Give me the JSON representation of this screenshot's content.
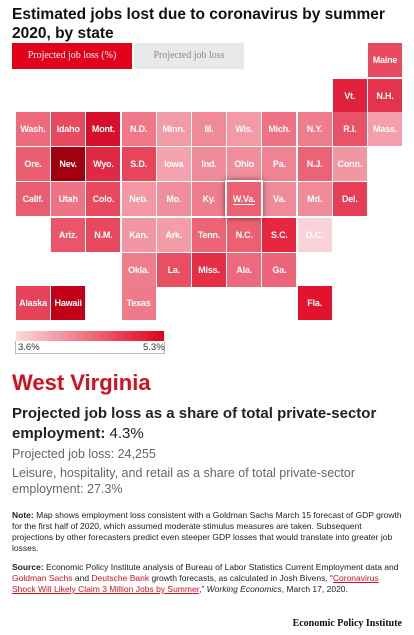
{
  "title": "Estimated jobs lost due to coronavirus by summer 2020, by state",
  "tabs": [
    "Projected job loss (%)",
    "Projected job loss"
  ],
  "colors": {
    "accent": "#e2001a",
    "light": "#fadade"
  },
  "states": [
    {
      "label": "Maine",
      "color": "#ea4a60",
      "row": 0,
      "col": 10
    },
    {
      "label": "Vt.",
      "color": "#e2213c",
      "row": 1,
      "col": 9
    },
    {
      "label": "N.H.",
      "color": "#e4344d",
      "row": 1,
      "col": 10
    },
    {
      "label": "Wash.",
      "color": "#ee6b7d",
      "row": 2,
      "col": 0
    },
    {
      "label": "Idaho",
      "color": "#e94a60",
      "row": 2,
      "col": 1
    },
    {
      "label": "Mont.",
      "color": "#d6102a",
      "row": 2,
      "col": 2
    },
    {
      "label": "N.D.",
      "color": "#f07788",
      "row": 2,
      "col": 3
    },
    {
      "label": "Minn.",
      "color": "#f29aa6",
      "row": 2,
      "col": 4
    },
    {
      "label": "Ill.",
      "color": "#f18a98",
      "row": 2,
      "col": 5
    },
    {
      "label": "Wis.",
      "color": "#f29aa6",
      "row": 2,
      "col": 6
    },
    {
      "label": "Mich.",
      "color": "#ee7283",
      "row": 2,
      "col": 7
    },
    {
      "label": "N.Y.",
      "color": "#ef7c8c",
      "row": 2,
      "col": 8
    },
    {
      "label": "R.I.",
      "color": "#ea5367",
      "row": 2,
      "col": 9
    },
    {
      "label": "Mass.",
      "color": "#f39eaa",
      "row": 2,
      "col": 10
    },
    {
      "label": "Ore.",
      "color": "#ec5e71",
      "row": 3,
      "col": 0
    },
    {
      "label": "Nev.",
      "color": "#a3000f",
      "row": 3,
      "col": 1
    },
    {
      "label": "Wyo.",
      "color": "#e02a44",
      "row": 3,
      "col": 2
    },
    {
      "label": "S.D.",
      "color": "#e8455b",
      "row": 3,
      "col": 3
    },
    {
      "label": "Iowa",
      "color": "#f4a3ae",
      "row": 3,
      "col": 4
    },
    {
      "label": "Ind.",
      "color": "#f08b99",
      "row": 3,
      "col": 5
    },
    {
      "label": "Ohio",
      "color": "#f18e9b",
      "row": 3,
      "col": 6
    },
    {
      "label": "Pa.",
      "color": "#ef8391",
      "row": 3,
      "col": 7
    },
    {
      "label": "N.J.",
      "color": "#ec6376",
      "row": 3,
      "col": 8
    },
    {
      "label": "Conn.",
      "color": "#f296a2",
      "row": 3,
      "col": 9
    },
    {
      "label": "Calif.",
      "color": "#ea5d70",
      "row": 4,
      "col": 0
    },
    {
      "label": "Utah",
      "color": "#ee7385",
      "row": 4,
      "col": 1
    },
    {
      "label": "Colo.",
      "color": "#e9485e",
      "row": 4,
      "col": 2
    },
    {
      "label": "Neb.",
      "color": "#f297a3",
      "row": 4,
      "col": 3
    },
    {
      "label": "Mo.",
      "color": "#f08e9b",
      "row": 4,
      "col": 4
    },
    {
      "label": "Ky.",
      "color": "#ee7e8d",
      "row": 4,
      "col": 5
    },
    {
      "label": "W.Va.",
      "color": "#ec6072",
      "row": 4,
      "col": 6,
      "selected": true
    },
    {
      "label": "Va.",
      "color": "#f08c9a",
      "row": 4,
      "col": 7
    },
    {
      "label": "Md.",
      "color": "#ef8a98",
      "row": 4,
      "col": 8
    },
    {
      "label": "Del.",
      "color": "#e63e55",
      "row": 4,
      "col": 9
    },
    {
      "label": "Ariz.",
      "color": "#ea5569",
      "row": 5,
      "col": 1
    },
    {
      "label": "N.M.",
      "color": "#e9495f",
      "row": 5,
      "col": 2
    },
    {
      "label": "Kan.",
      "color": "#f196a2",
      "row": 5,
      "col": 3
    },
    {
      "label": "Ark.",
      "color": "#f39da8",
      "row": 5,
      "col": 4
    },
    {
      "label": "Tenn.",
      "color": "#ec6476",
      "row": 5,
      "col": 5
    },
    {
      "label": "N.C.",
      "color": "#ec6072",
      "row": 5,
      "col": 6
    },
    {
      "label": "S.C.",
      "color": "#e7273f",
      "row": 5,
      "col": 7
    },
    {
      "label": "D.C.",
      "color": "#f8d3d8",
      "row": 5,
      "col": 8
    },
    {
      "label": "Okla.",
      "color": "#ef7e8d",
      "row": 6,
      "col": 3
    },
    {
      "label": "La.",
      "color": "#ea4e63",
      "row": 6,
      "col": 4
    },
    {
      "label": "Miss.",
      "color": "#e62e47",
      "row": 6,
      "col": 5
    },
    {
      "label": "Ala.",
      "color": "#ed6a7c",
      "row": 6,
      "col": 6
    },
    {
      "label": "Ga.",
      "color": "#ec6477",
      "row": 6,
      "col": 7
    },
    {
      "label": "Alaska",
      "color": "#e8425a",
      "row": 7,
      "col": 0
    },
    {
      "label": "Hawaii",
      "color": "#c10018",
      "row": 7,
      "col": 1
    },
    {
      "label": "Texas",
      "color": "#ef7a8a",
      "row": 7,
      "col": 3
    },
    {
      "label": "Fla.",
      "color": "#e3132e",
      "row": 7,
      "col": 8
    }
  ],
  "legend": {
    "min": "3.6%",
    "max": "5.3%"
  },
  "detail": {
    "state": "West Virginia",
    "metric_label": "Projected job loss as a share of total private-sector employment:",
    "metric_value": "4.3%",
    "jobs_line": "Projected job loss: 24,255",
    "leisure_line": "Leisure, hospitality, and retail as a share of total private-sector employment: 27.3%"
  },
  "note": {
    "label": "Note:",
    "text": "Map shows employment loss consistent with a Goldman Sachs March 15 forecast of GDP growth for the first half of 2020, which assumed moderate stimulus measures are taken. Subsequent projections by other forecasters predict even steeper GDP losses that would translate into greater job losses."
  },
  "source": {
    "label": "Source:",
    "t1": "Economic Policy Institute analysis of Bureau of Labor Statistics Current Employment data and",
    "l1": "Goldman Sachs",
    "t2": "and",
    "l2": "Deutsche Bank",
    "t3": "growth forecasts, as calculated in Josh Bivens, “",
    "l3": "Coronavirus Shock Will Likely Claim 3 Million Jobs by Summer",
    "t4": ",” ",
    "journal": "Working Economics",
    "t5": ", March 17, 2020."
  },
  "brand": "Economic Policy Institute"
}
